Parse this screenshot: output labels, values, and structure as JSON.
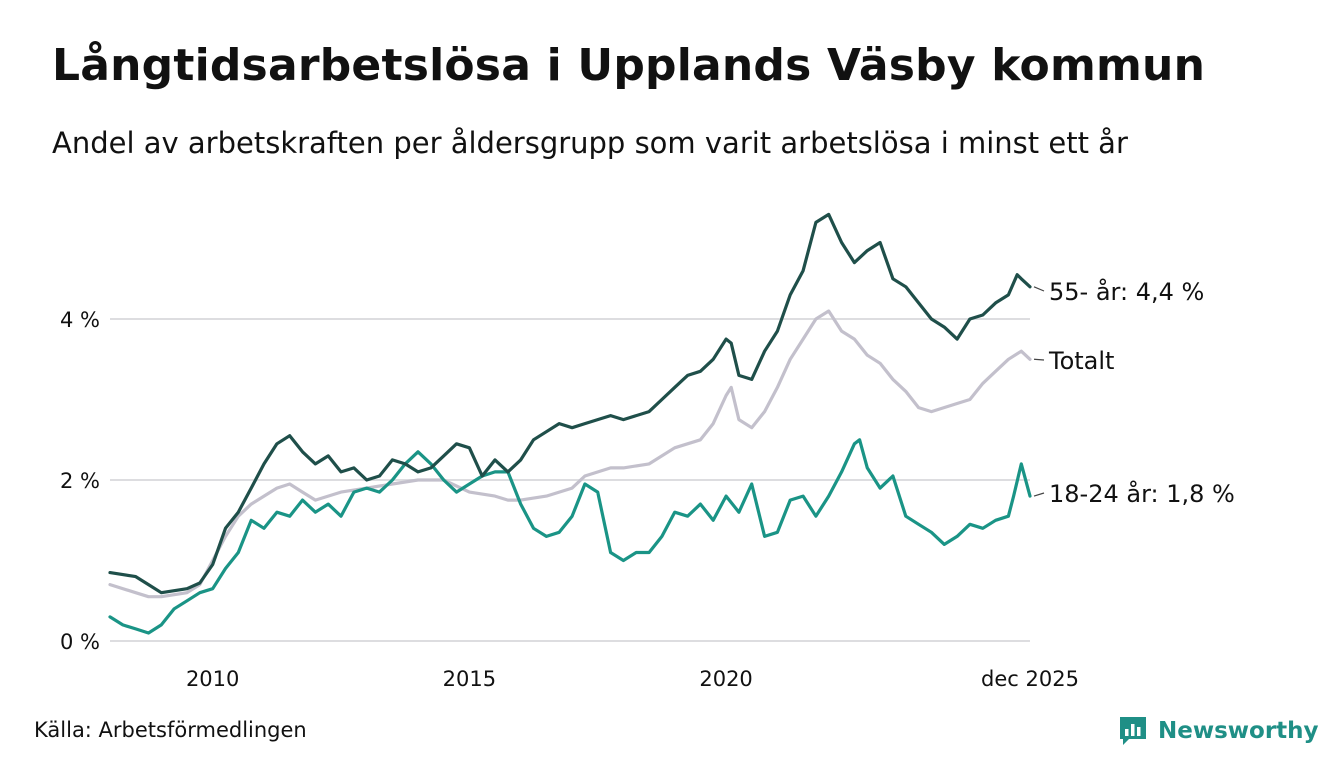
{
  "title": "Långtidsarbetslösa i Upplands Väsby kommun",
  "subtitle": "Andel av arbetskraften per åldersgrupp som varit arbetslösa i minst ett år",
  "source": "Källa: Arbetsförmedlingen",
  "brand": "Newsworthy",
  "colors": {
    "age55": "#1f4f4a",
    "total": "#c3c0cc",
    "age18_24": "#1a9486",
    "grid": "#dddde0"
  },
  "chart_data": {
    "type": "line",
    "title": "Långtidsarbetslösa i Upplands Väsby kommun",
    "ylabel": "",
    "xlabel": "",
    "ylim": [
      0,
      5.4
    ],
    "y_ticks": [
      {
        "value": 0,
        "label": "0 %"
      },
      {
        "value": 2,
        "label": "2 %"
      },
      {
        "value": 4,
        "label": "4 %"
      }
    ],
    "x_range": [
      2008.0,
      2025.92
    ],
    "x_ticks": [
      {
        "value": 2010,
        "label": "2010"
      },
      {
        "value": 2015,
        "label": "2015"
      },
      {
        "value": 2020,
        "label": "2020"
      },
      {
        "value": 2025.92,
        "label": "dec 2025"
      }
    ],
    "series": [
      {
        "key": "age55",
        "name": "55- år",
        "end_label": "55- år: 4,4 %",
        "points": [
          [
            2008.0,
            0.85
          ],
          [
            2008.5,
            0.8
          ],
          [
            2008.75,
            0.7
          ],
          [
            2009.0,
            0.6
          ],
          [
            2009.5,
            0.65
          ],
          [
            2009.75,
            0.72
          ],
          [
            2010.0,
            0.95
          ],
          [
            2010.25,
            1.4
          ],
          [
            2010.5,
            1.6
          ],
          [
            2010.75,
            1.9
          ],
          [
            2011.0,
            2.2
          ],
          [
            2011.25,
            2.45
          ],
          [
            2011.5,
            2.55
          ],
          [
            2011.75,
            2.35
          ],
          [
            2012.0,
            2.2
          ],
          [
            2012.25,
            2.3
          ],
          [
            2012.5,
            2.1
          ],
          [
            2012.75,
            2.15
          ],
          [
            2013.0,
            2.0
          ],
          [
            2013.25,
            2.05
          ],
          [
            2013.5,
            2.25
          ],
          [
            2013.75,
            2.2
          ],
          [
            2014.0,
            2.1
          ],
          [
            2014.25,
            2.15
          ],
          [
            2014.5,
            2.3
          ],
          [
            2014.75,
            2.45
          ],
          [
            2015.0,
            2.4
          ],
          [
            2015.25,
            2.05
          ],
          [
            2015.5,
            2.25
          ],
          [
            2015.75,
            2.1
          ],
          [
            2016.0,
            2.25
          ],
          [
            2016.25,
            2.5
          ],
          [
            2016.5,
            2.6
          ],
          [
            2016.75,
            2.7
          ],
          [
            2017.0,
            2.65
          ],
          [
            2017.25,
            2.7
          ],
          [
            2017.5,
            2.75
          ],
          [
            2017.75,
            2.8
          ],
          [
            2018.0,
            2.75
          ],
          [
            2018.5,
            2.85
          ],
          [
            2018.75,
            3.0
          ],
          [
            2019.0,
            3.15
          ],
          [
            2019.25,
            3.3
          ],
          [
            2019.5,
            3.35
          ],
          [
            2019.75,
            3.5
          ],
          [
            2020.0,
            3.75
          ],
          [
            2020.1,
            3.7
          ],
          [
            2020.25,
            3.3
          ],
          [
            2020.5,
            3.25
          ],
          [
            2020.75,
            3.6
          ],
          [
            2021.0,
            3.85
          ],
          [
            2021.25,
            4.3
          ],
          [
            2021.5,
            4.6
          ],
          [
            2021.75,
            5.2
          ],
          [
            2022.0,
            5.3
          ],
          [
            2022.25,
            4.95
          ],
          [
            2022.5,
            4.7
          ],
          [
            2022.75,
            4.85
          ],
          [
            2023.0,
            4.95
          ],
          [
            2023.25,
            4.5
          ],
          [
            2023.5,
            4.4
          ],
          [
            2023.75,
            4.2
          ],
          [
            2024.0,
            4.0
          ],
          [
            2024.25,
            3.9
          ],
          [
            2024.5,
            3.75
          ],
          [
            2024.75,
            4.0
          ],
          [
            2025.0,
            4.05
          ],
          [
            2025.25,
            4.2
          ],
          [
            2025.5,
            4.3
          ],
          [
            2025.67,
            4.55
          ],
          [
            2025.75,
            4.5
          ],
          [
            2025.92,
            4.4
          ]
        ]
      },
      {
        "key": "total",
        "name": "Totalt",
        "end_label": "Totalt",
        "points": [
          [
            2008.0,
            0.7
          ],
          [
            2008.5,
            0.6
          ],
          [
            2008.75,
            0.55
          ],
          [
            2009.0,
            0.55
          ],
          [
            2009.5,
            0.6
          ],
          [
            2009.75,
            0.7
          ],
          [
            2010.0,
            1.0
          ],
          [
            2010.25,
            1.3
          ],
          [
            2010.5,
            1.55
          ],
          [
            2010.75,
            1.7
          ],
          [
            2011.0,
            1.8
          ],
          [
            2011.25,
            1.9
          ],
          [
            2011.5,
            1.95
          ],
          [
            2011.75,
            1.85
          ],
          [
            2012.0,
            1.75
          ],
          [
            2012.5,
            1.85
          ],
          [
            2013.0,
            1.9
          ],
          [
            2013.5,
            1.95
          ],
          [
            2014.0,
            2.0
          ],
          [
            2014.5,
            2.0
          ],
          [
            2015.0,
            1.85
          ],
          [
            2015.5,
            1.8
          ],
          [
            2015.75,
            1.75
          ],
          [
            2016.0,
            1.75
          ],
          [
            2016.5,
            1.8
          ],
          [
            2017.0,
            1.9
          ],
          [
            2017.25,
            2.05
          ],
          [
            2017.75,
            2.15
          ],
          [
            2018.0,
            2.15
          ],
          [
            2018.5,
            2.2
          ],
          [
            2019.0,
            2.4
          ],
          [
            2019.5,
            2.5
          ],
          [
            2019.75,
            2.7
          ],
          [
            2020.0,
            3.05
          ],
          [
            2020.1,
            3.15
          ],
          [
            2020.25,
            2.75
          ],
          [
            2020.5,
            2.65
          ],
          [
            2020.75,
            2.85
          ],
          [
            2021.0,
            3.15
          ],
          [
            2021.25,
            3.5
          ],
          [
            2021.5,
            3.75
          ],
          [
            2021.75,
            4.0
          ],
          [
            2022.0,
            4.1
          ],
          [
            2022.25,
            3.85
          ],
          [
            2022.5,
            3.75
          ],
          [
            2022.75,
            3.55
          ],
          [
            2023.0,
            3.45
          ],
          [
            2023.25,
            3.25
          ],
          [
            2023.5,
            3.1
          ],
          [
            2023.75,
            2.9
          ],
          [
            2024.0,
            2.85
          ],
          [
            2024.5,
            2.95
          ],
          [
            2024.75,
            3.0
          ],
          [
            2025.0,
            3.2
          ],
          [
            2025.25,
            3.35
          ],
          [
            2025.5,
            3.5
          ],
          [
            2025.75,
            3.6
          ],
          [
            2025.92,
            3.5
          ]
        ]
      },
      {
        "key": "age18_24",
        "name": "18-24 år",
        "end_label": "18-24 år: 1,8 %",
        "points": [
          [
            2008.0,
            0.3
          ],
          [
            2008.25,
            0.2
          ],
          [
            2008.5,
            0.15
          ],
          [
            2008.75,
            0.1
          ],
          [
            2009.0,
            0.2
          ],
          [
            2009.25,
            0.4
          ],
          [
            2009.5,
            0.5
          ],
          [
            2009.75,
            0.6
          ],
          [
            2010.0,
            0.65
          ],
          [
            2010.25,
            0.9
          ],
          [
            2010.5,
            1.1
          ],
          [
            2010.75,
            1.5
          ],
          [
            2011.0,
            1.4
          ],
          [
            2011.25,
            1.6
          ],
          [
            2011.5,
            1.55
          ],
          [
            2011.75,
            1.75
          ],
          [
            2012.0,
            1.6
          ],
          [
            2012.25,
            1.7
          ],
          [
            2012.5,
            1.55
          ],
          [
            2012.75,
            1.85
          ],
          [
            2013.0,
            1.9
          ],
          [
            2013.25,
            1.85
          ],
          [
            2013.5,
            2.0
          ],
          [
            2013.75,
            2.2
          ],
          [
            2014.0,
            2.35
          ],
          [
            2014.25,
            2.2
          ],
          [
            2014.5,
            2.0
          ],
          [
            2014.75,
            1.85
          ],
          [
            2015.0,
            1.95
          ],
          [
            2015.25,
            2.05
          ],
          [
            2015.5,
            2.1
          ],
          [
            2015.75,
            2.1
          ],
          [
            2016.0,
            1.7
          ],
          [
            2016.25,
            1.4
          ],
          [
            2016.5,
            1.3
          ],
          [
            2016.75,
            1.35
          ],
          [
            2017.0,
            1.55
          ],
          [
            2017.25,
            1.95
          ],
          [
            2017.5,
            1.85
          ],
          [
            2017.75,
            1.1
          ],
          [
            2018.0,
            1.0
          ],
          [
            2018.25,
            1.1
          ],
          [
            2018.5,
            1.1
          ],
          [
            2018.75,
            1.3
          ],
          [
            2019.0,
            1.6
          ],
          [
            2019.25,
            1.55
          ],
          [
            2019.5,
            1.7
          ],
          [
            2019.75,
            1.5
          ],
          [
            2020.0,
            1.8
          ],
          [
            2020.25,
            1.6
          ],
          [
            2020.5,
            1.95
          ],
          [
            2020.75,
            1.3
          ],
          [
            2021.0,
            1.35
          ],
          [
            2021.25,
            1.75
          ],
          [
            2021.5,
            1.8
          ],
          [
            2021.75,
            1.55
          ],
          [
            2022.0,
            1.8
          ],
          [
            2022.25,
            2.1
          ],
          [
            2022.5,
            2.45
          ],
          [
            2022.6,
            2.5
          ],
          [
            2022.75,
            2.15
          ],
          [
            2023.0,
            1.9
          ],
          [
            2023.25,
            2.05
          ],
          [
            2023.5,
            1.55
          ],
          [
            2023.75,
            1.45
          ],
          [
            2024.0,
            1.35
          ],
          [
            2024.25,
            1.2
          ],
          [
            2024.5,
            1.3
          ],
          [
            2024.75,
            1.45
          ],
          [
            2025.0,
            1.4
          ],
          [
            2025.25,
            1.5
          ],
          [
            2025.5,
            1.55
          ],
          [
            2025.6,
            1.8
          ],
          [
            2025.75,
            2.2
          ],
          [
            2025.92,
            1.8
          ]
        ]
      }
    ]
  }
}
